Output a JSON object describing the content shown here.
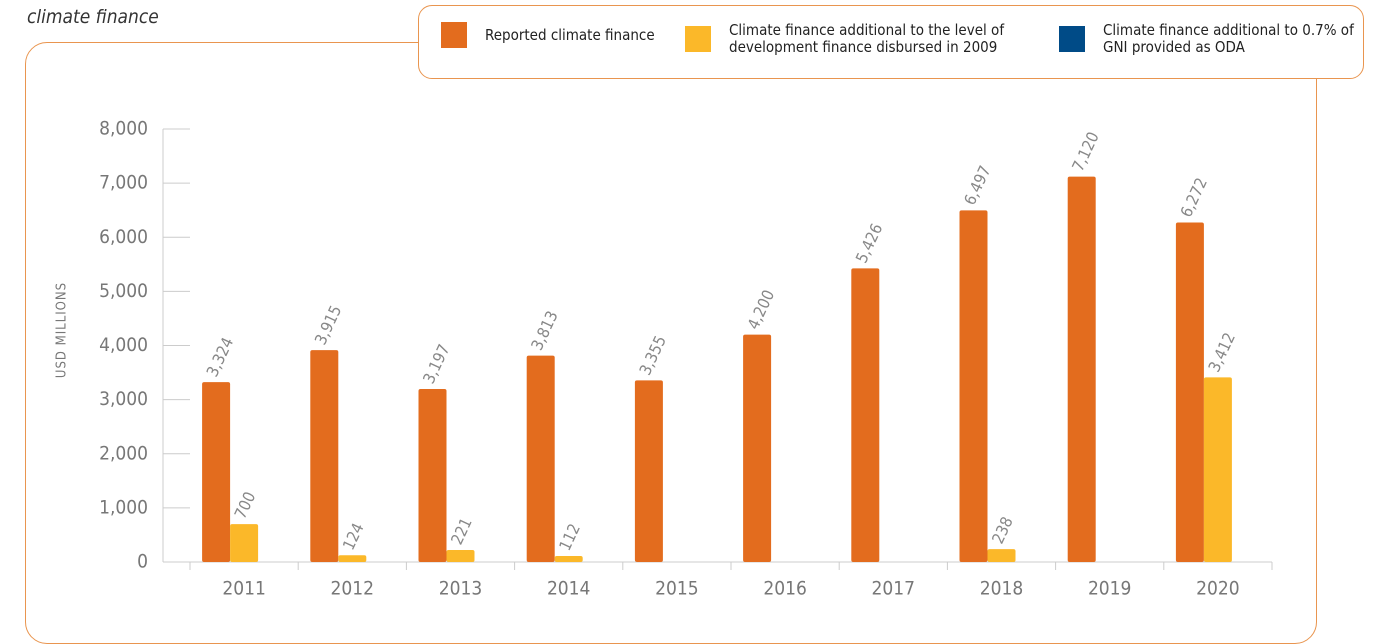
{
  "chart_data": {
    "type": "bar",
    "subtitle": "climate finance",
    "y_label": "USD MILLIONS",
    "categories": [
      "2011",
      "2012",
      "2013",
      "2014",
      "2015",
      "2016",
      "2017",
      "2018",
      "2019",
      "2020"
    ],
    "series": [
      {
        "name": "Reported climate finance",
        "color": "#e36c1e",
        "values": [
          3324,
          3915,
          3197,
          3813,
          3355,
          4200,
          5426,
          6497,
          7120,
          6272
        ],
        "value_labels": [
          "3,324",
          "3,915",
          "3,197",
          "3,813",
          "3,355",
          "4,200",
          "5,426",
          "6,497",
          "7,120",
          "6,272"
        ]
      },
      {
        "name": "Climate finance additional to the level of development finance disbursed in 2009",
        "color": "#fbb829",
        "values": [
          700,
          124,
          221,
          112,
          null,
          null,
          null,
          238,
          null,
          3412
        ],
        "value_labels": [
          "700",
          "124",
          "221",
          "112",
          null,
          null,
          null,
          "238",
          null,
          "3,412"
        ]
      },
      {
        "name": "Climate finance additional to 0.7% of GNI provided as ODA",
        "color": "#004b87",
        "values": [
          null,
          null,
          null,
          null,
          null,
          null,
          null,
          null,
          null,
          null
        ]
      }
    ],
    "ylim": [
      0,
      8000
    ],
    "yticks": [
      0,
      {
        "value": 1000,
        "label": "1,000"
      },
      {
        "value": 2000,
        "label": "2,000"
      },
      {
        "value": 3000,
        "label": "3,000"
      },
      {
        "value": 4000,
        "label": "4,000"
      },
      {
        "value": 5000,
        "label": "5,000"
      },
      {
        "value": 6000,
        "label": "6,000"
      },
      {
        "value": 7000,
        "label": "7,000"
      },
      {
        "value": 8000,
        "label": "8,000"
      }
    ],
    "legend": "top-right"
  }
}
